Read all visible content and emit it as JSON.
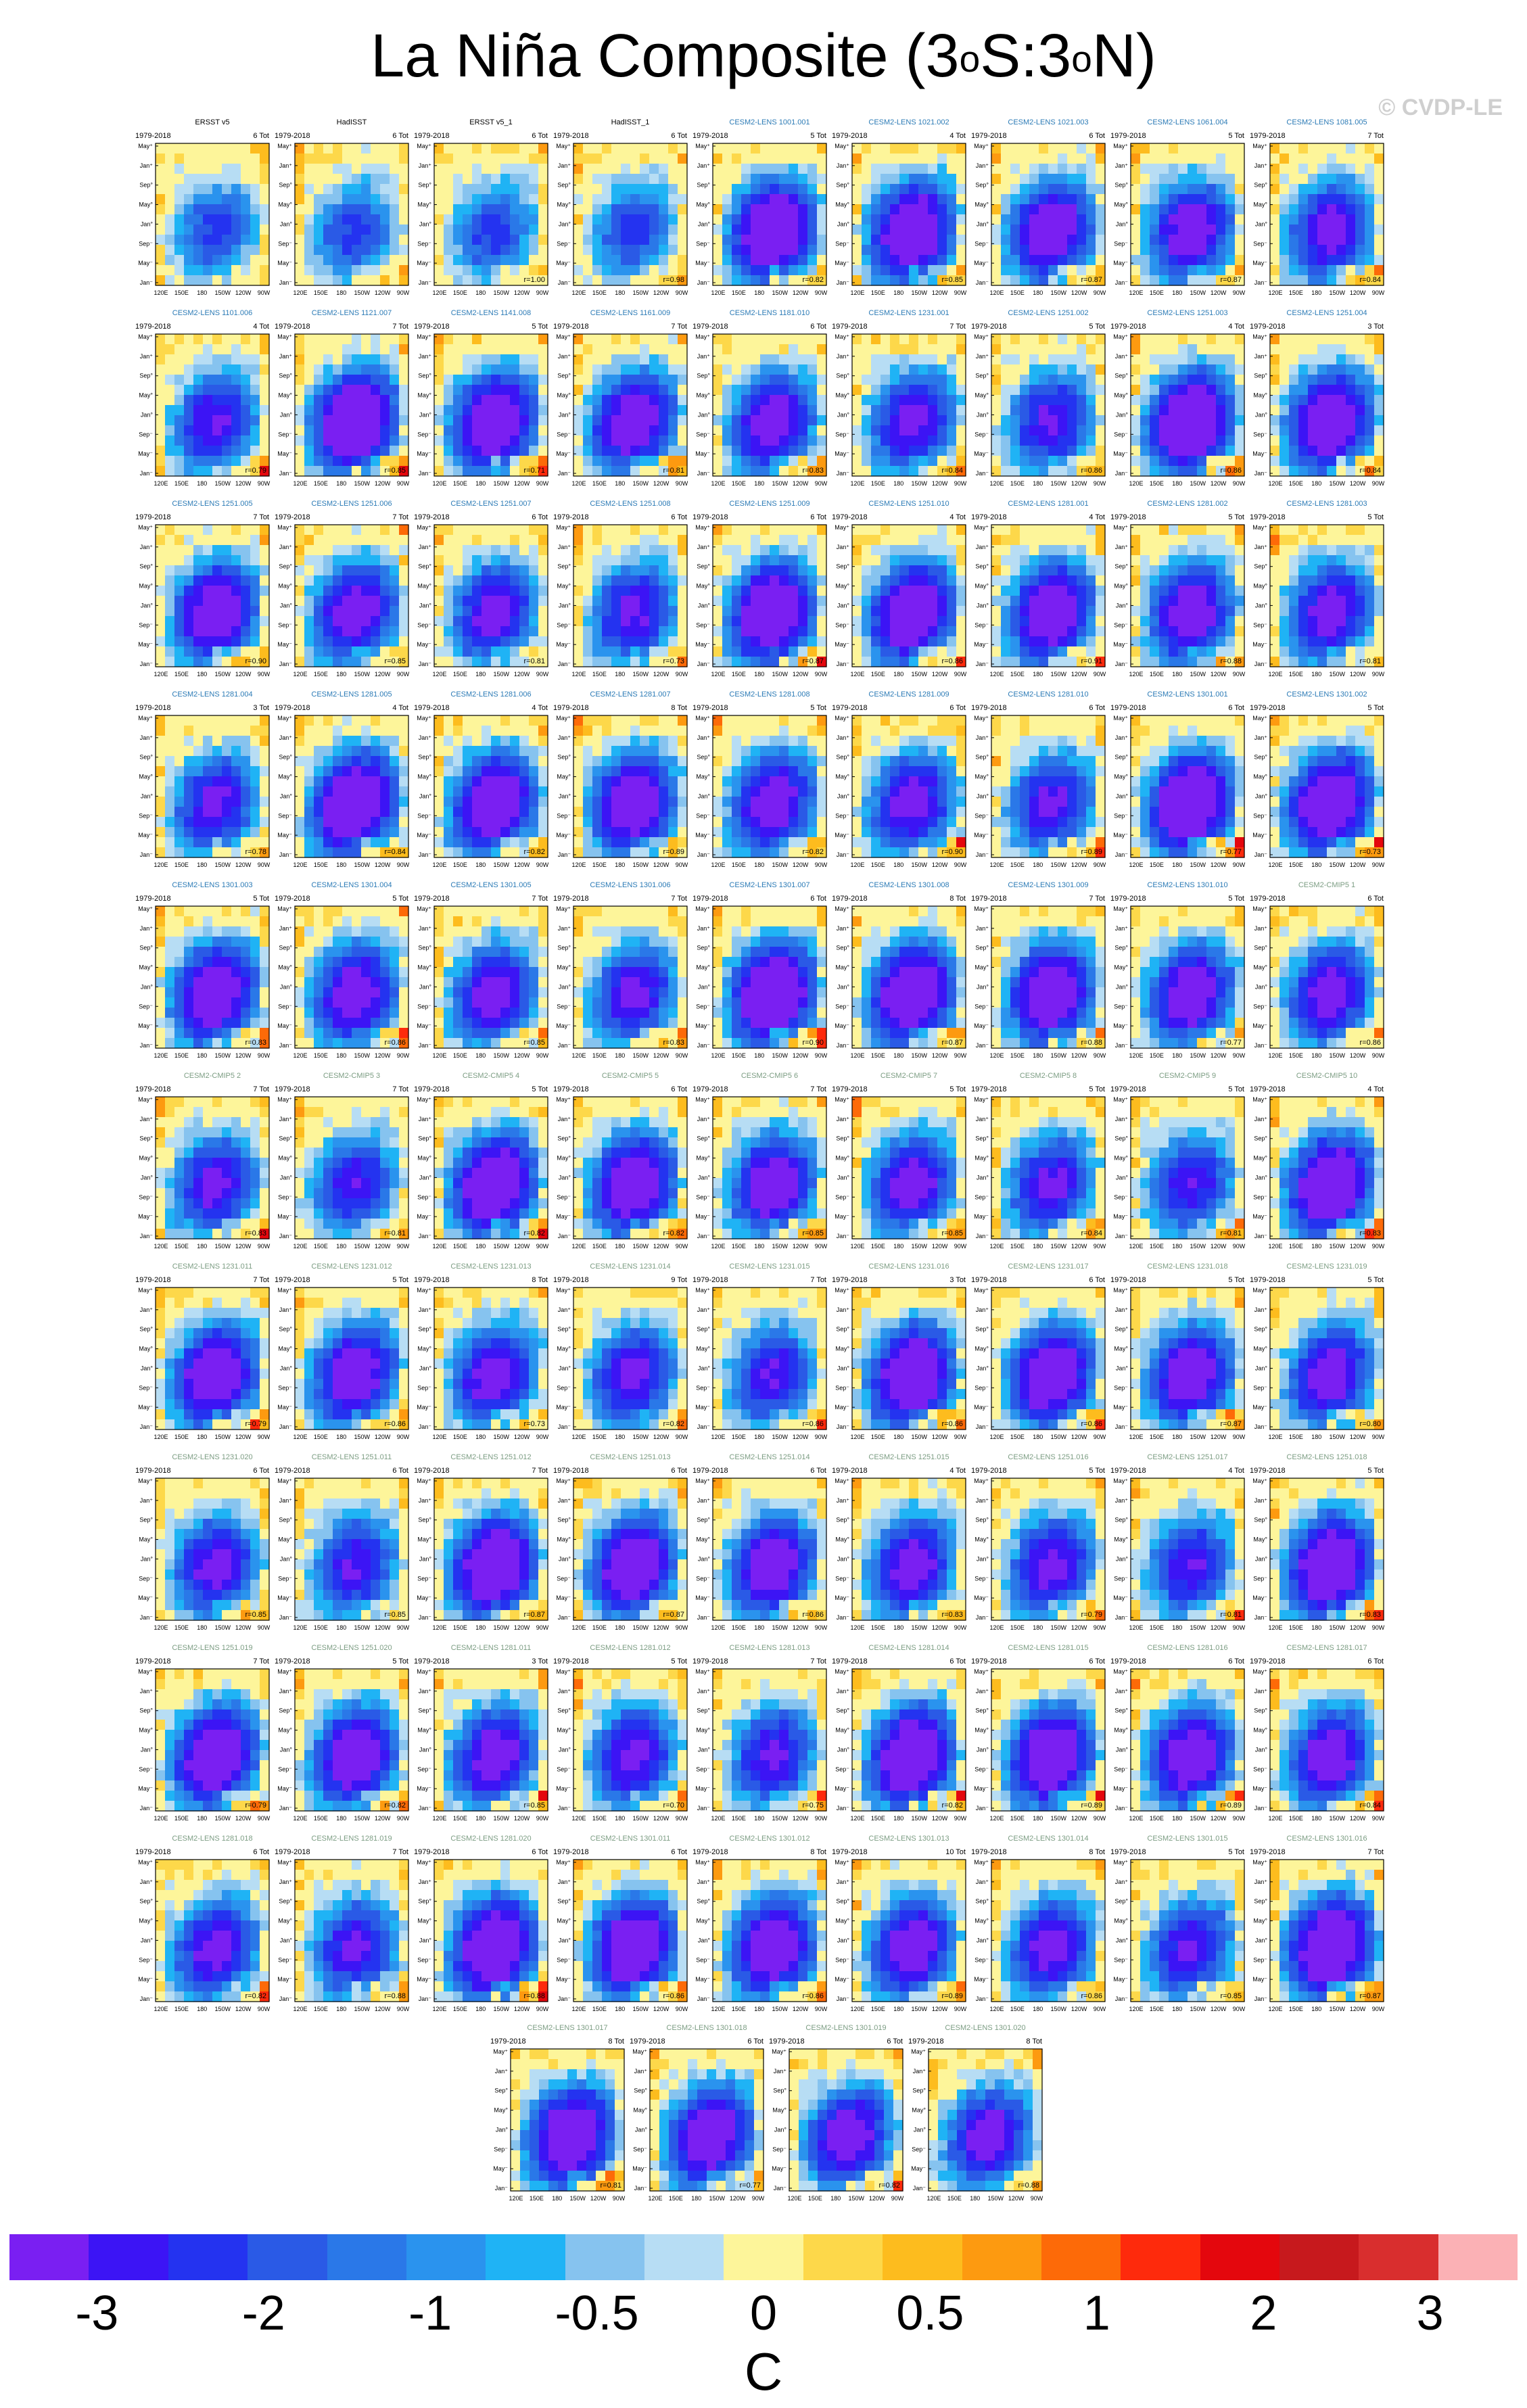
{
  "title": {
    "main": "La Niña Composite (3",
    "deg1": "o",
    "mid": "S:3",
    "deg2": "o",
    "end": "N)"
  },
  "watermark": "© CVDP-LE",
  "colors": {
    "palette": [
      "#7a1ff2",
      "#3c14f5",
      "#2433f0",
      "#2a5ae6",
      "#2a78e8",
      "#2a93ee",
      "#1fb3f5",
      "#86c3ef",
      "#b7ddf4",
      "#fdf59a",
      "#fdd84a",
      "#fdbc1e",
      "#fd9a10",
      "#fd6a08",
      "#fe2a0c",
      "#e4070d",
      "#c7191d",
      "#d92e2e",
      "#fbb1b5"
    ],
    "contour": "#333333",
    "obs_label": "#000000",
    "model_label": "#2c7bb6",
    "pattern_label": "#7c9d83"
  },
  "colorbar": {
    "labels": [
      "-3",
      "-2",
      "-1",
      "-0.5",
      "0",
      "0.5",
      "1",
      "2",
      "3"
    ],
    "unit": "C"
  },
  "panel_axes": {
    "y_ticks": [
      "May⁺",
      "Jan⁺",
      "Sep°",
      "May°",
      "Jan°",
      "Sep⁻",
      "May⁻",
      "Jan⁻"
    ],
    "x_ticks": [
      "120E",
      "150E",
      "180",
      "150W",
      "120W",
      "90W"
    ],
    "period": "1979-2018"
  },
  "chart_data": {
    "type": "heatmap",
    "title": "La Niña Composite (3°S:3°N)",
    "colorbar_unit": "C",
    "colorbar_levels": [
      "-3",
      "-2",
      "-1",
      "-0.5",
      "0",
      "0.5",
      "1",
      "2",
      "3"
    ],
    "x_ticks": [
      "120E",
      "150E",
      "180",
      "150W",
      "120W",
      "90W"
    ],
    "y_ticks": [
      "May⁺",
      "Jan⁺",
      "Sep°",
      "May°",
      "Jan°",
      "Sep⁻",
      "May⁻",
      "Jan⁻"
    ],
    "panels": [
      {
        "name": "ERSST v5",
        "period": "1979-2018",
        "count": "6 Tot",
        "r": "",
        "kind": "obs"
      },
      {
        "name": "HadISST",
        "period": "1979-2018",
        "count": "6 Tot",
        "r": "",
        "kind": "obs"
      },
      {
        "name": "ERSST v5_1",
        "period": "1979-2018",
        "count": "6 Tot",
        "r": "r=1.00",
        "kind": "obs"
      },
      {
        "name": "HadISST_1",
        "period": "1979-2018",
        "count": "6 Tot",
        "r": "r=0.98",
        "kind": "obs"
      },
      {
        "name": "CESM2-LENS 1001.001",
        "period": "1979-2018",
        "count": "5 Tot",
        "r": "r=0.82",
        "kind": "model"
      },
      {
        "name": "CESM2-LENS 1021.002",
        "period": "1979-2018",
        "count": "4 Tot",
        "r": "r=0.85",
        "kind": "model"
      },
      {
        "name": "CESM2-LENS 1021.003",
        "period": "1979-2018",
        "count": "6 Tot",
        "r": "r=0.87",
        "kind": "model"
      },
      {
        "name": "CESM2-LENS 1061.004",
        "period": "1979-2018",
        "count": "5 Tot",
        "r": "r=0.87",
        "kind": "model"
      },
      {
        "name": "CESM2-LENS 1081.005",
        "period": "1979-2018",
        "count": "7 Tot",
        "r": "r=0.84",
        "kind": "model"
      },
      {
        "name": "CESM2-LENS 1101.006",
        "period": "1979-2018",
        "count": "4 Tot",
        "r": "r=0.79",
        "kind": "model"
      },
      {
        "name": "CESM2-LENS 1121.007",
        "period": "1979-2018",
        "count": "7 Tot",
        "r": "r=0.85",
        "kind": "model"
      },
      {
        "name": "CESM2-LENS 1141.008",
        "period": "1979-2018",
        "count": "5 Tot",
        "r": "r=0.71",
        "kind": "model"
      },
      {
        "name": "CESM2-LENS 1161.009",
        "period": "1979-2018",
        "count": "7 Tot",
        "r": "r=0.81",
        "kind": "model"
      },
      {
        "name": "CESM2-LENS 1181.010",
        "period": "1979-2018",
        "count": "6 Tot",
        "r": "r=0.83",
        "kind": "model"
      },
      {
        "name": "CESM2-LENS 1231.001",
        "period": "1979-2018",
        "count": "7 Tot",
        "r": "r=0.84",
        "kind": "model"
      },
      {
        "name": "CESM2-LENS 1251.002",
        "period": "1979-2018",
        "count": "5 Tot",
        "r": "r=0.86",
        "kind": "model"
      },
      {
        "name": "CESM2-LENS 1251.003",
        "period": "1979-2018",
        "count": "4 Tot",
        "r": "r=0.86",
        "kind": "model"
      },
      {
        "name": "CESM2-LENS 1251.004",
        "period": "1979-2018",
        "count": "3 Tot",
        "r": "r=0.84",
        "kind": "model"
      },
      {
        "name": "CESM2-LENS 1251.005",
        "period": "1979-2018",
        "count": "7 Tot",
        "r": "r=0.90",
        "kind": "model"
      },
      {
        "name": "CESM2-LENS 1251.006",
        "period": "1979-2018",
        "count": "7 Tot",
        "r": "r=0.85",
        "kind": "model"
      },
      {
        "name": "CESM2-LENS 1251.007",
        "period": "1979-2018",
        "count": "6 Tot",
        "r": "r=0.81",
        "kind": "model"
      },
      {
        "name": "CESM2-LENS 1251.008",
        "period": "1979-2018",
        "count": "6 Tot",
        "r": "r=0.73",
        "kind": "model"
      },
      {
        "name": "CESM2-LENS 1251.009",
        "period": "1979-2018",
        "count": "6 Tot",
        "r": "r=0.87",
        "kind": "model"
      },
      {
        "name": "CESM2-LENS 1251.010",
        "period": "1979-2018",
        "count": "4 Tot",
        "r": "r=0.86",
        "kind": "model"
      },
      {
        "name": "CESM2-LENS 1281.001",
        "period": "1979-2018",
        "count": "4 Tot",
        "r": "r=0.91",
        "kind": "model"
      },
      {
        "name": "CESM2-LENS 1281.002",
        "period": "1979-2018",
        "count": "5 Tot",
        "r": "r=0.88",
        "kind": "model"
      },
      {
        "name": "CESM2-LENS 1281.003",
        "period": "1979-2018",
        "count": "5 Tot",
        "r": "r=0.81",
        "kind": "model"
      },
      {
        "name": "CESM2-LENS 1281.004",
        "period": "1979-2018",
        "count": "3 Tot",
        "r": "r=0.78",
        "kind": "model"
      },
      {
        "name": "CESM2-LENS 1281.005",
        "period": "1979-2018",
        "count": "4 Tot",
        "r": "r=0.84",
        "kind": "model"
      },
      {
        "name": "CESM2-LENS 1281.006",
        "period": "1979-2018",
        "count": "4 Tot",
        "r": "r=0.82",
        "kind": "model"
      },
      {
        "name": "CESM2-LENS 1281.007",
        "period": "1979-2018",
        "count": "8 Tot",
        "r": "r=0.89",
        "kind": "model"
      },
      {
        "name": "CESM2-LENS 1281.008",
        "period": "1979-2018",
        "count": "5 Tot",
        "r": "r=0.82",
        "kind": "model"
      },
      {
        "name": "CESM2-LENS 1281.009",
        "period": "1979-2018",
        "count": "6 Tot",
        "r": "r=0.90",
        "kind": "model"
      },
      {
        "name": "CESM2-LENS 1281.010",
        "period": "1979-2018",
        "count": "6 Tot",
        "r": "r=0.89",
        "kind": "model"
      },
      {
        "name": "CESM2-LENS 1301.001",
        "period": "1979-2018",
        "count": "6 Tot",
        "r": "r=0.77",
        "kind": "model"
      },
      {
        "name": "CESM2-LENS 1301.002",
        "period": "1979-2018",
        "count": "5 Tot",
        "r": "r=0.73",
        "kind": "model"
      },
      {
        "name": "CESM2-LENS 1301.003",
        "period": "1979-2018",
        "count": "5 Tot",
        "r": "r=0.83",
        "kind": "model"
      },
      {
        "name": "CESM2-LENS 1301.004",
        "period": "1979-2018",
        "count": "5 Tot",
        "r": "r=0.86",
        "kind": "model"
      },
      {
        "name": "CESM2-LENS 1301.005",
        "period": "1979-2018",
        "count": "7 Tot",
        "r": "r=0.85",
        "kind": "model"
      },
      {
        "name": "CESM2-LENS 1301.006",
        "period": "1979-2018",
        "count": "7 Tot",
        "r": "r=0.83",
        "kind": "model"
      },
      {
        "name": "CESM2-LENS 1301.007",
        "period": "1979-2018",
        "count": "6 Tot",
        "r": "r=0.90",
        "kind": "model"
      },
      {
        "name": "CESM2-LENS 1301.008",
        "period": "1979-2018",
        "count": "8 Tot",
        "r": "r=0.87",
        "kind": "model"
      },
      {
        "name": "CESM2-LENS 1301.009",
        "period": "1979-2018",
        "count": "7 Tot",
        "r": "r=0.88",
        "kind": "model"
      },
      {
        "name": "CESM2-LENS 1301.010",
        "period": "1979-2018",
        "count": "5 Tot",
        "r": "r=0.77",
        "kind": "model"
      },
      {
        "name": "CESM2-CMIP5 1",
        "period": "1979-2018",
        "count": "6 Tot",
        "r": "r=0.86",
        "kind": "pattern"
      },
      {
        "name": "CESM2-CMIP5 2",
        "period": "1979-2018",
        "count": "7 Tot",
        "r": "r=0.83",
        "kind": "pattern"
      },
      {
        "name": "CESM2-CMIP5 3",
        "period": "1979-2018",
        "count": "7 Tot",
        "r": "r=0.81",
        "kind": "pattern"
      },
      {
        "name": "CESM2-CMIP5 4",
        "period": "1979-2018",
        "count": "5 Tot",
        "r": "r=0.82",
        "kind": "pattern"
      },
      {
        "name": "CESM2-CMIP5 5",
        "period": "1979-2018",
        "count": "6 Tot",
        "r": "r=0.82",
        "kind": "pattern"
      },
      {
        "name": "CESM2-CMIP5 6",
        "period": "1979-2018",
        "count": "7 Tot",
        "r": "r=0.85",
        "kind": "pattern"
      },
      {
        "name": "CESM2-CMIP5 7",
        "period": "1979-2018",
        "count": "5 Tot",
        "r": "r=0.85",
        "kind": "pattern"
      },
      {
        "name": "CESM2-CMIP5 8",
        "period": "1979-2018",
        "count": "5 Tot",
        "r": "r=0.84",
        "kind": "pattern"
      },
      {
        "name": "CESM2-CMIP5 9",
        "period": "1979-2018",
        "count": "5 Tot",
        "r": "r=0.81",
        "kind": "pattern"
      },
      {
        "name": "CESM2-CMIP5 10",
        "period": "1979-2018",
        "count": "4 Tot",
        "r": "r=0.83",
        "kind": "pattern"
      },
      {
        "name": "CESM2-LENS 1231.011",
        "period": "1979-2018",
        "count": "7 Tot",
        "r": "r=0.79",
        "kind": "pattern"
      },
      {
        "name": "CESM2-LENS 1231.012",
        "period": "1979-2018",
        "count": "5 Tot",
        "r": "r=0.86",
        "kind": "pattern"
      },
      {
        "name": "CESM2-LENS 1231.013",
        "period": "1979-2018",
        "count": "8 Tot",
        "r": "r=0.73",
        "kind": "pattern"
      },
      {
        "name": "CESM2-LENS 1231.014",
        "period": "1979-2018",
        "count": "9 Tot",
        "r": "r=0.82",
        "kind": "pattern"
      },
      {
        "name": "CESM2-LENS 1231.015",
        "period": "1979-2018",
        "count": "7 Tot",
        "r": "r=0.86",
        "kind": "pattern"
      },
      {
        "name": "CESM2-LENS 1231.016",
        "period": "1979-2018",
        "count": "3 Tot",
        "r": "r=0.86",
        "kind": "pattern"
      },
      {
        "name": "CESM2-LENS 1231.017",
        "period": "1979-2018",
        "count": "6 Tot",
        "r": "r=0.86",
        "kind": "pattern"
      },
      {
        "name": "CESM2-LENS 1231.018",
        "period": "1979-2018",
        "count": "5 Tot",
        "r": "r=0.87",
        "kind": "pattern"
      },
      {
        "name": "CESM2-LENS 1231.019",
        "period": "1979-2018",
        "count": "5 Tot",
        "r": "r=0.80",
        "kind": "pattern"
      },
      {
        "name": "CESM2-LENS 1231.020",
        "period": "1979-2018",
        "count": "6 Tot",
        "r": "r=0.85",
        "kind": "pattern"
      },
      {
        "name": "CESM2-LENS 1251.011",
        "period": "1979-2018",
        "count": "6 Tot",
        "r": "r=0.85",
        "kind": "pattern"
      },
      {
        "name": "CESM2-LENS 1251.012",
        "period": "1979-2018",
        "count": "7 Tot",
        "r": "r=0.87",
        "kind": "pattern"
      },
      {
        "name": "CESM2-LENS 1251.013",
        "period": "1979-2018",
        "count": "6 Tot",
        "r": "r=0.87",
        "kind": "pattern"
      },
      {
        "name": "CESM2-LENS 1251.014",
        "period": "1979-2018",
        "count": "6 Tot",
        "r": "r=0.86",
        "kind": "pattern"
      },
      {
        "name": "CESM2-LENS 1251.015",
        "period": "1979-2018",
        "count": "4 Tot",
        "r": "r=0.83",
        "kind": "pattern"
      },
      {
        "name": "CESM2-LENS 1251.016",
        "period": "1979-2018",
        "count": "5 Tot",
        "r": "r=0.79",
        "kind": "pattern"
      },
      {
        "name": "CESM2-LENS 1251.017",
        "period": "1979-2018",
        "count": "4 Tot",
        "r": "r=0.81",
        "kind": "pattern"
      },
      {
        "name": "CESM2-LENS 1251.018",
        "period": "1979-2018",
        "count": "5 Tot",
        "r": "r=0.83",
        "kind": "pattern"
      },
      {
        "name": "CESM2-LENS 1251.019",
        "period": "1979-2018",
        "count": "7 Tot",
        "r": "r=0.79",
        "kind": "pattern"
      },
      {
        "name": "CESM2-LENS 1251.020",
        "period": "1979-2018",
        "count": "5 Tot",
        "r": "r=0.82",
        "kind": "pattern"
      },
      {
        "name": "CESM2-LENS 1281.011",
        "period": "1979-2018",
        "count": "3 Tot",
        "r": "r=0.85",
        "kind": "pattern"
      },
      {
        "name": "CESM2-LENS 1281.012",
        "period": "1979-2018",
        "count": "5 Tot",
        "r": "r=0.70",
        "kind": "pattern"
      },
      {
        "name": "CESM2-LENS 1281.013",
        "period": "1979-2018",
        "count": "7 Tot",
        "r": "r=0.75",
        "kind": "pattern"
      },
      {
        "name": "CESM2-LENS 1281.014",
        "period": "1979-2018",
        "count": "6 Tot",
        "r": "r=0.82",
        "kind": "pattern"
      },
      {
        "name": "CESM2-LENS 1281.015",
        "period": "1979-2018",
        "count": "6 Tot",
        "r": "r=0.89",
        "kind": "pattern"
      },
      {
        "name": "CESM2-LENS 1281.016",
        "period": "1979-2018",
        "count": "6 Tot",
        "r": "r=0.89",
        "kind": "pattern"
      },
      {
        "name": "CESM2-LENS 1281.017",
        "period": "1979-2018",
        "count": "6 Tot",
        "r": "r=0.84",
        "kind": "pattern"
      },
      {
        "name": "CESM2-LENS 1281.018",
        "period": "1979-2018",
        "count": "6 Tot",
        "r": "r=0.82",
        "kind": "pattern"
      },
      {
        "name": "CESM2-LENS 1281.019",
        "period": "1979-2018",
        "count": "7 Tot",
        "r": "r=0.88",
        "kind": "pattern"
      },
      {
        "name": "CESM2-LENS 1281.020",
        "period": "1979-2018",
        "count": "6 Tot",
        "r": "r=0.88",
        "kind": "pattern"
      },
      {
        "name": "CESM2-LENS 1301.011",
        "period": "1979-2018",
        "count": "6 Tot",
        "r": "r=0.86",
        "kind": "pattern"
      },
      {
        "name": "CESM2-LENS 1301.012",
        "period": "1979-2018",
        "count": "8 Tot",
        "r": "r=0.86",
        "kind": "pattern"
      },
      {
        "name": "CESM2-LENS 1301.013",
        "period": "1979-2018",
        "count": "10 Tot",
        "r": "r=0.89",
        "kind": "pattern"
      },
      {
        "name": "CESM2-LENS 1301.014",
        "period": "1979-2018",
        "count": "8 Tot",
        "r": "r=0.86",
        "kind": "pattern"
      },
      {
        "name": "CESM2-LENS 1301.015",
        "period": "1979-2018",
        "count": "5 Tot",
        "r": "r=0.85",
        "kind": "pattern"
      },
      {
        "name": "CESM2-LENS 1301.016",
        "period": "1979-2018",
        "count": "7 Tot",
        "r": "r=0.87",
        "kind": "pattern"
      },
      {
        "name": "CESM2-LENS 1301.017",
        "period": "1979-2018",
        "count": "8 Tot",
        "r": "r=0.81",
        "kind": "pattern"
      },
      {
        "name": "CESM2-LENS 1301.018",
        "period": "1979-2018",
        "count": "6 Tot",
        "r": "r=0.77",
        "kind": "pattern"
      },
      {
        "name": "CESM2-LENS 1301.019",
        "period": "1979-2018",
        "count": "6 Tot",
        "r": "r=0.82",
        "kind": "pattern"
      },
      {
        "name": "CESM2-LENS 1301.020",
        "period": "1979-2018",
        "count": "8 Tot",
        "r": "r=0.88",
        "kind": "pattern"
      }
    ]
  }
}
